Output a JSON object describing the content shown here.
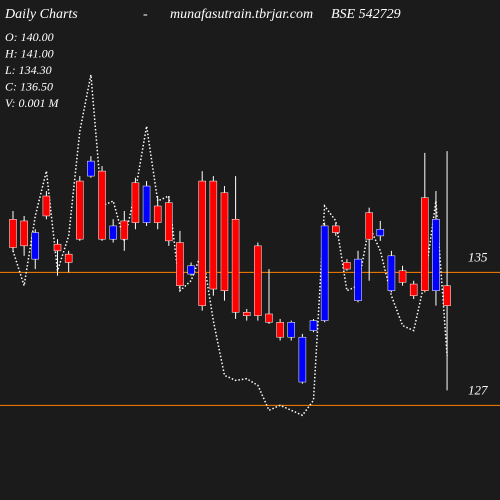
{
  "chart_data": {
    "type": "candlestick",
    "title": "Daily Charts",
    "dash": "-",
    "source": "munafasutrain.tbrjar.com",
    "symbol": "BSE 542729",
    "info": [
      "O: 140.00",
      "H: 141.00",
      "L: 134.30",
      "C: 136.50",
      "V: 0.001 M"
    ],
    "open": [
      138.2,
      138.1,
      135.8,
      139.6,
      136.7,
      136.1,
      140.5,
      140.8,
      141.1,
      137.0,
      138.1,
      140.4,
      138.0,
      139.0,
      139.2,
      136.8,
      134.9,
      140.5,
      140.5,
      139.8,
      138.2,
      132.6,
      136.6,
      132.5,
      132.0,
      131.1,
      128.4,
      131.5,
      132.1,
      137.8,
      135.6,
      133.3,
      138.6,
      137.2,
      133.9,
      135.1,
      134.3,
      139.5,
      133.9,
      134.2
    ],
    "high": [
      138.7,
      138.4,
      137.6,
      139.9,
      137.0,
      136.3,
      140.8,
      142.0,
      141.4,
      138.2,
      138.7,
      140.7,
      140.5,
      139.6,
      139.6,
      137.5,
      135.6,
      141.1,
      140.8,
      140.2,
      140.8,
      132.8,
      136.8,
      135.2,
      132.2,
      132.1,
      131.3,
      132.2,
      138.0,
      138.0,
      135.8,
      136.3,
      138.9,
      138.1,
      136.3,
      135.4,
      134.5,
      142.2,
      139.9,
      142.3
    ],
    "low": [
      136.3,
      136.0,
      135.2,
      138.2,
      134.8,
      135.0,
      136.9,
      140.7,
      136.9,
      136.8,
      136.3,
      137.6,
      137.8,
      137.6,
      136.6,
      133.9,
      134.8,
      132.7,
      133.6,
      133.3,
      132.2,
      132.1,
      132.1,
      131.9,
      130.9,
      130.9,
      128.3,
      131.4,
      132.0,
      137.2,
      135.1,
      133.2,
      134.5,
      136.9,
      133.8,
      134.2,
      133.4,
      133.8,
      133.0,
      127.9
    ],
    "close": [
      136.5,
      136.6,
      137.4,
      138.4,
      136.3,
      135.6,
      137.0,
      141.7,
      137.0,
      137.8,
      137.0,
      138.0,
      140.2,
      138.0,
      136.9,
      134.2,
      135.4,
      133.0,
      134.0,
      133.9,
      132.6,
      132.4,
      132.4,
      132.0,
      131.1,
      132.0,
      131.1,
      132.1,
      137.8,
      137.4,
      135.2,
      135.8,
      137.0,
      137.6,
      136.0,
      134.4,
      133.6,
      133.9,
      138.2,
      133.0
    ],
    "line": {
      "color": "#ffffff",
      "values": [
        136.3,
        134.2,
        138.4,
        141.1,
        135.1,
        137.2,
        143.5,
        146.9,
        139.0,
        139.3,
        136.9,
        139.9,
        143.8,
        139.3,
        139.6,
        133.9,
        134.5,
        136.3,
        132.1,
        128.8,
        128.5,
        128.6,
        128.2,
        126.7,
        127.0,
        126.7,
        126.4,
        127.3,
        139.0,
        138.1,
        133.9,
        134.2,
        137.8,
        136.3,
        133.6,
        131.8,
        131.5,
        134.5,
        139.3,
        130.0
      ]
    },
    "up_color": "#0000ff",
    "down_color": "#ff0000",
    "wick_color": "#ffffff",
    "grid_color": "#ff8000",
    "ylim": [
      121.3,
      151.4
    ],
    "yticks": [
      127,
      135
    ],
    "grid": true
  }
}
